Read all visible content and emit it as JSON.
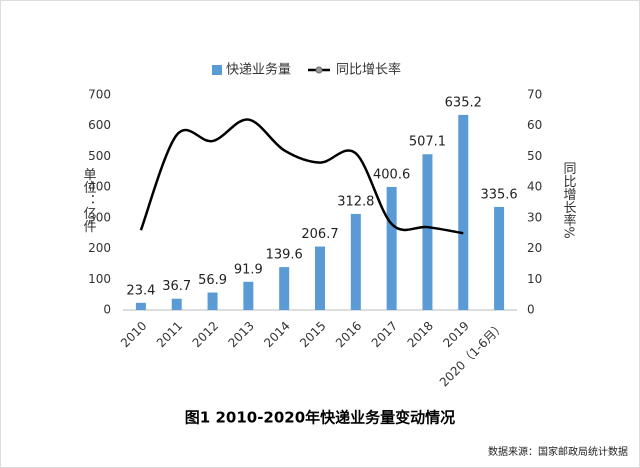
{
  "chart_data": {
    "type": "combo",
    "title": "图1  2010-2020年快递业务量变动情况",
    "source": "数据来源：国家邮政局统计数据",
    "y_label": "单位：亿件",
    "y2_label": "同比增长率%",
    "categories": [
      "2010",
      "2011",
      "2012",
      "2013",
      "2014",
      "2015",
      "2016",
      "2017",
      "2018",
      "2019",
      "2020（1-6月）"
    ],
    "series": [
      {
        "name": "快递业务量",
        "type": "bar",
        "axis": "y",
        "color": "#5b9bd5",
        "values": [
          23.4,
          36.7,
          56.9,
          91.9,
          139.6,
          206.7,
          312.8,
          400.6,
          507.1,
          635.2,
          335.6
        ]
      },
      {
        "name": "同比增长率",
        "type": "line",
        "axis": "y2",
        "color": "#000000",
        "values": [
          26,
          57,
          55,
          62,
          52,
          48,
          51,
          28,
          27,
          25,
          null
        ]
      }
    ],
    "ylim": [
      0,
      700
    ],
    "yticks": [
      0,
      100,
      200,
      300,
      400,
      500,
      600,
      700
    ],
    "y2lim": [
      0,
      70
    ],
    "y2ticks": [
      0,
      10,
      20,
      30,
      40,
      50,
      60,
      70
    ],
    "legend": "top"
  }
}
